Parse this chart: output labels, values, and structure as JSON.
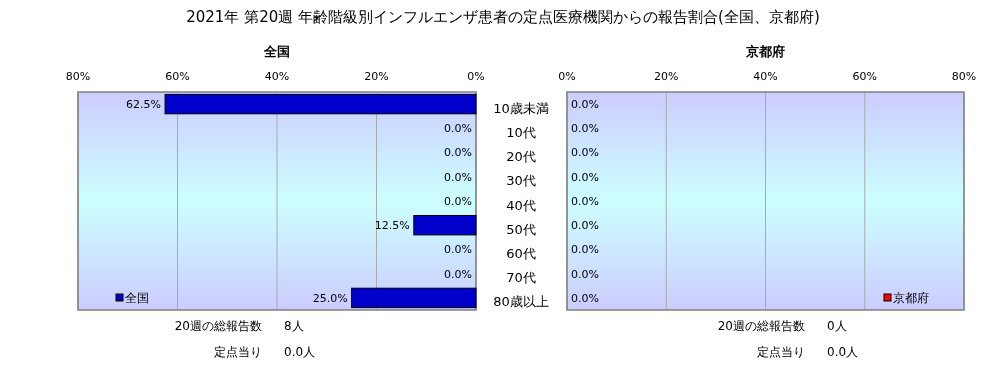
{
  "chart_data": [
    {
      "type": "bar",
      "title": "2021年 第20週 年齢階級別インフルエンザ患者の定点医療機関からの報告割合(全国、京都府)",
      "subtitle": "全国",
      "orientation": "horizontal",
      "categories": [
        "10歳未満",
        "10代",
        "20代",
        "30代",
        "40代",
        "50代",
        "60代",
        "70代",
        "80歳以上"
      ],
      "series": [
        {
          "name": "全国",
          "color": "#0000cc",
          "values": [
            62.5,
            0,
            0,
            0,
            0,
            12.5,
            0,
            0,
            25.0
          ],
          "value_labels": [
            "62.5%",
            "0.0%",
            "0.0%",
            "0.0%",
            "0.0%",
            "12.5%",
            "0.0%",
            "0.0%",
            "25.0%"
          ]
        }
      ],
      "xlim": [
        80,
        0
      ],
      "xticks": [
        {
          "value": 80,
          "label": "80%"
        },
        {
          "value": 60,
          "label": "60%"
        },
        {
          "value": 40,
          "label": "40%"
        },
        {
          "value": 20,
          "label": "20%"
        },
        {
          "value": 0,
          "label": "0%"
        }
      ],
      "grid": "x",
      "legend": "bottom left",
      "annotations": [
        "20週の総報告数",
        "8人",
        "定点当り",
        "0.0人"
      ]
    },
    {
      "type": "bar",
      "title": "京都府",
      "orientation": "horizontal",
      "categories": [
        null,
        null,
        null,
        null,
        null,
        null,
        null,
        null,
        null
      ],
      "series": [
        {
          "name": "京都府",
          "color": "#ff0000",
          "values": [
            0,
            0,
            0,
            0,
            0,
            0,
            0,
            0,
            0
          ],
          "value_labels": [
            "0.0%",
            "0.0%",
            "0.0%",
            "0.0%",
            "0.0%",
            "0.0%",
            "0.0%",
            "0.0%",
            "0.0%"
          ]
        }
      ],
      "xlim": [
        0,
        80
      ],
      "xticks": [
        {
          "value": 0,
          "label": "0%"
        },
        {
          "value": 20,
          "label": "20%"
        },
        {
          "value": 40,
          "label": "40%"
        },
        {
          "value": 60,
          "label": "60%"
        },
        {
          "value": 80,
          "label": "80%"
        }
      ],
      "grid": "x",
      "legend": "bottom right",
      "annotations": [
        "20週の総報告数",
        "0人",
        "定点当り",
        "0.0人"
      ]
    }
  ]
}
